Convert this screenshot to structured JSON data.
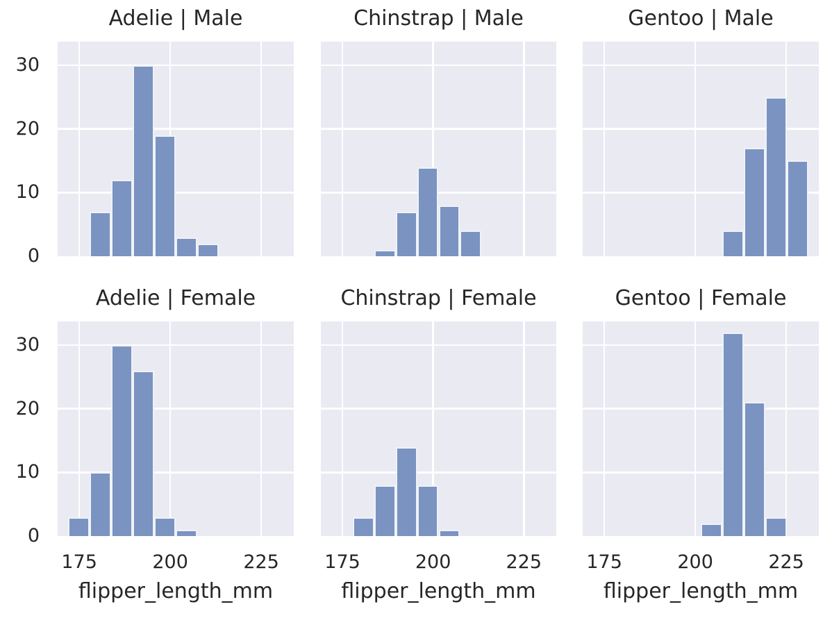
{
  "chart_data": {
    "type": "bar",
    "subtype": "faceted-histogram",
    "xlabel": "flipper_length_mm",
    "ylabel": "",
    "x_ticks": [
      175,
      200,
      225
    ],
    "y_ticks": [
      0,
      10,
      20,
      30
    ],
    "xlim": [
      169.05,
      233.95
    ],
    "ylim": [
      0,
      33.7
    ],
    "grid": "on",
    "legend": "none",
    "bin_edges": [
      172.0,
      177.9,
      183.8,
      189.7,
      195.6,
      201.5,
      207.4,
      213.3,
      219.2,
      225.1,
      231.0
    ],
    "colors": {
      "bar_fill": "#7a93c1",
      "bar_edge": "#f4f6fa",
      "plot_background": "#eaeaf2",
      "gridline": "#ffffff",
      "text": "#262626",
      "figure_background": "#ffffff"
    },
    "facets": [
      {
        "title": "Adelie | Male",
        "row": 0,
        "col": 0,
        "counts": [
          0,
          7,
          12,
          30,
          19,
          3,
          2,
          0,
          0,
          0
        ]
      },
      {
        "title": "Chinstrap | Male",
        "row": 0,
        "col": 1,
        "counts": [
          0,
          0,
          1,
          7,
          14,
          8,
          4,
          0,
          0,
          0
        ]
      },
      {
        "title": "Gentoo | Male",
        "row": 0,
        "col": 2,
        "counts": [
          0,
          0,
          0,
          0,
          0,
          0,
          4,
          17,
          25,
          15
        ]
      },
      {
        "title": "Adelie | Female",
        "row": 1,
        "col": 0,
        "counts": [
          3,
          10,
          30,
          26,
          3,
          1,
          0,
          0,
          0,
          0
        ]
      },
      {
        "title": "Chinstrap | Female",
        "row": 1,
        "col": 1,
        "counts": [
          0,
          3,
          8,
          14,
          8,
          1,
          0,
          0,
          0,
          0
        ]
      },
      {
        "title": "Gentoo | Female",
        "row": 1,
        "col": 2,
        "counts": [
          0,
          0,
          0,
          0,
          0,
          2,
          32,
          21,
          3,
          0
        ]
      }
    ]
  }
}
